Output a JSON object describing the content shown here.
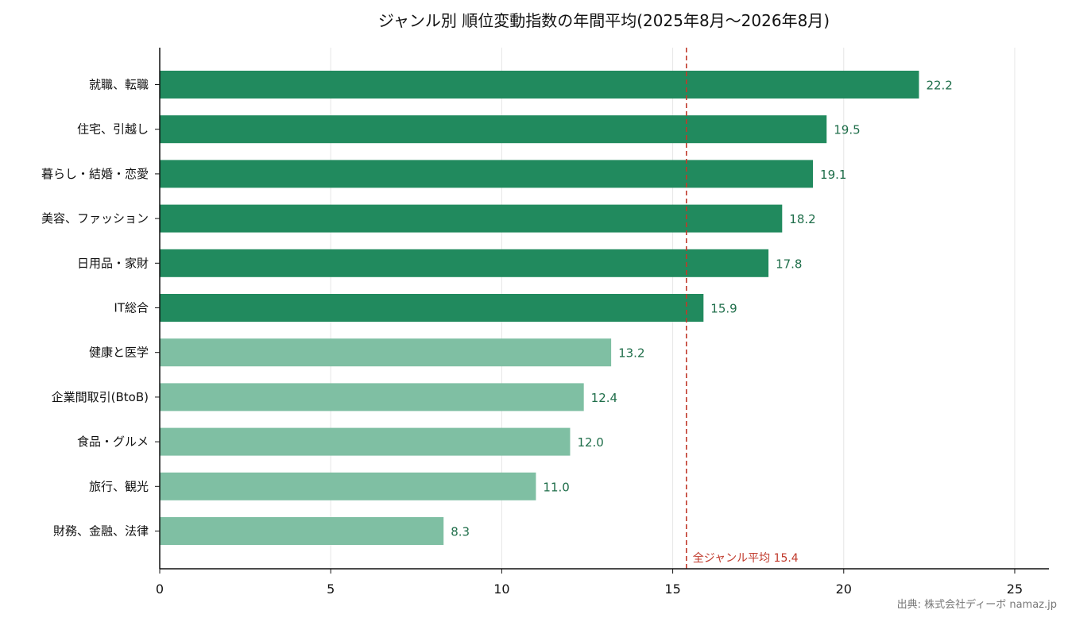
{
  "chart_data": {
    "type": "bar",
    "orientation": "horizontal",
    "title": "ジャンル別 順位変動指数の年間平均(2025年8月〜2026年8月)",
    "categories": [
      "就職、転職",
      "住宅、引越し",
      "暮らし・結婚・恋愛",
      "美容、ファッション",
      "日用品・家財",
      "IT総合",
      "健康と医学",
      "企業間取引(BtoB)",
      "食品・グルメ",
      "旅行、観光",
      "財務、金融、法律"
    ],
    "values": [
      22.2,
      19.5,
      19.1,
      18.2,
      17.8,
      15.9,
      13.2,
      12.4,
      12.0,
      11.0,
      8.3
    ],
    "value_labels": [
      "22.2",
      "19.5",
      "19.1",
      "18.2",
      "17.8",
      "15.9",
      "13.2",
      "12.4",
      "12.0",
      "11.0",
      "8.3"
    ],
    "xlim": [
      0,
      26
    ],
    "xticks": [
      0,
      5,
      10,
      15,
      20,
      25
    ],
    "xtick_labels": [
      "0",
      "5",
      "10",
      "15",
      "20",
      "25"
    ],
    "grid": "vertical",
    "reference_line": {
      "value": 15.4,
      "label": "全ジャンル平均 15.4",
      "color": "#c0392b",
      "style": "dashed"
    },
    "colors": {
      "above_average": "#218a5e",
      "below_average": "#7fbfa3",
      "value_label": "#1f6e4a"
    },
    "source": "出典: 株式会社ディーボ namaz.jp"
  }
}
